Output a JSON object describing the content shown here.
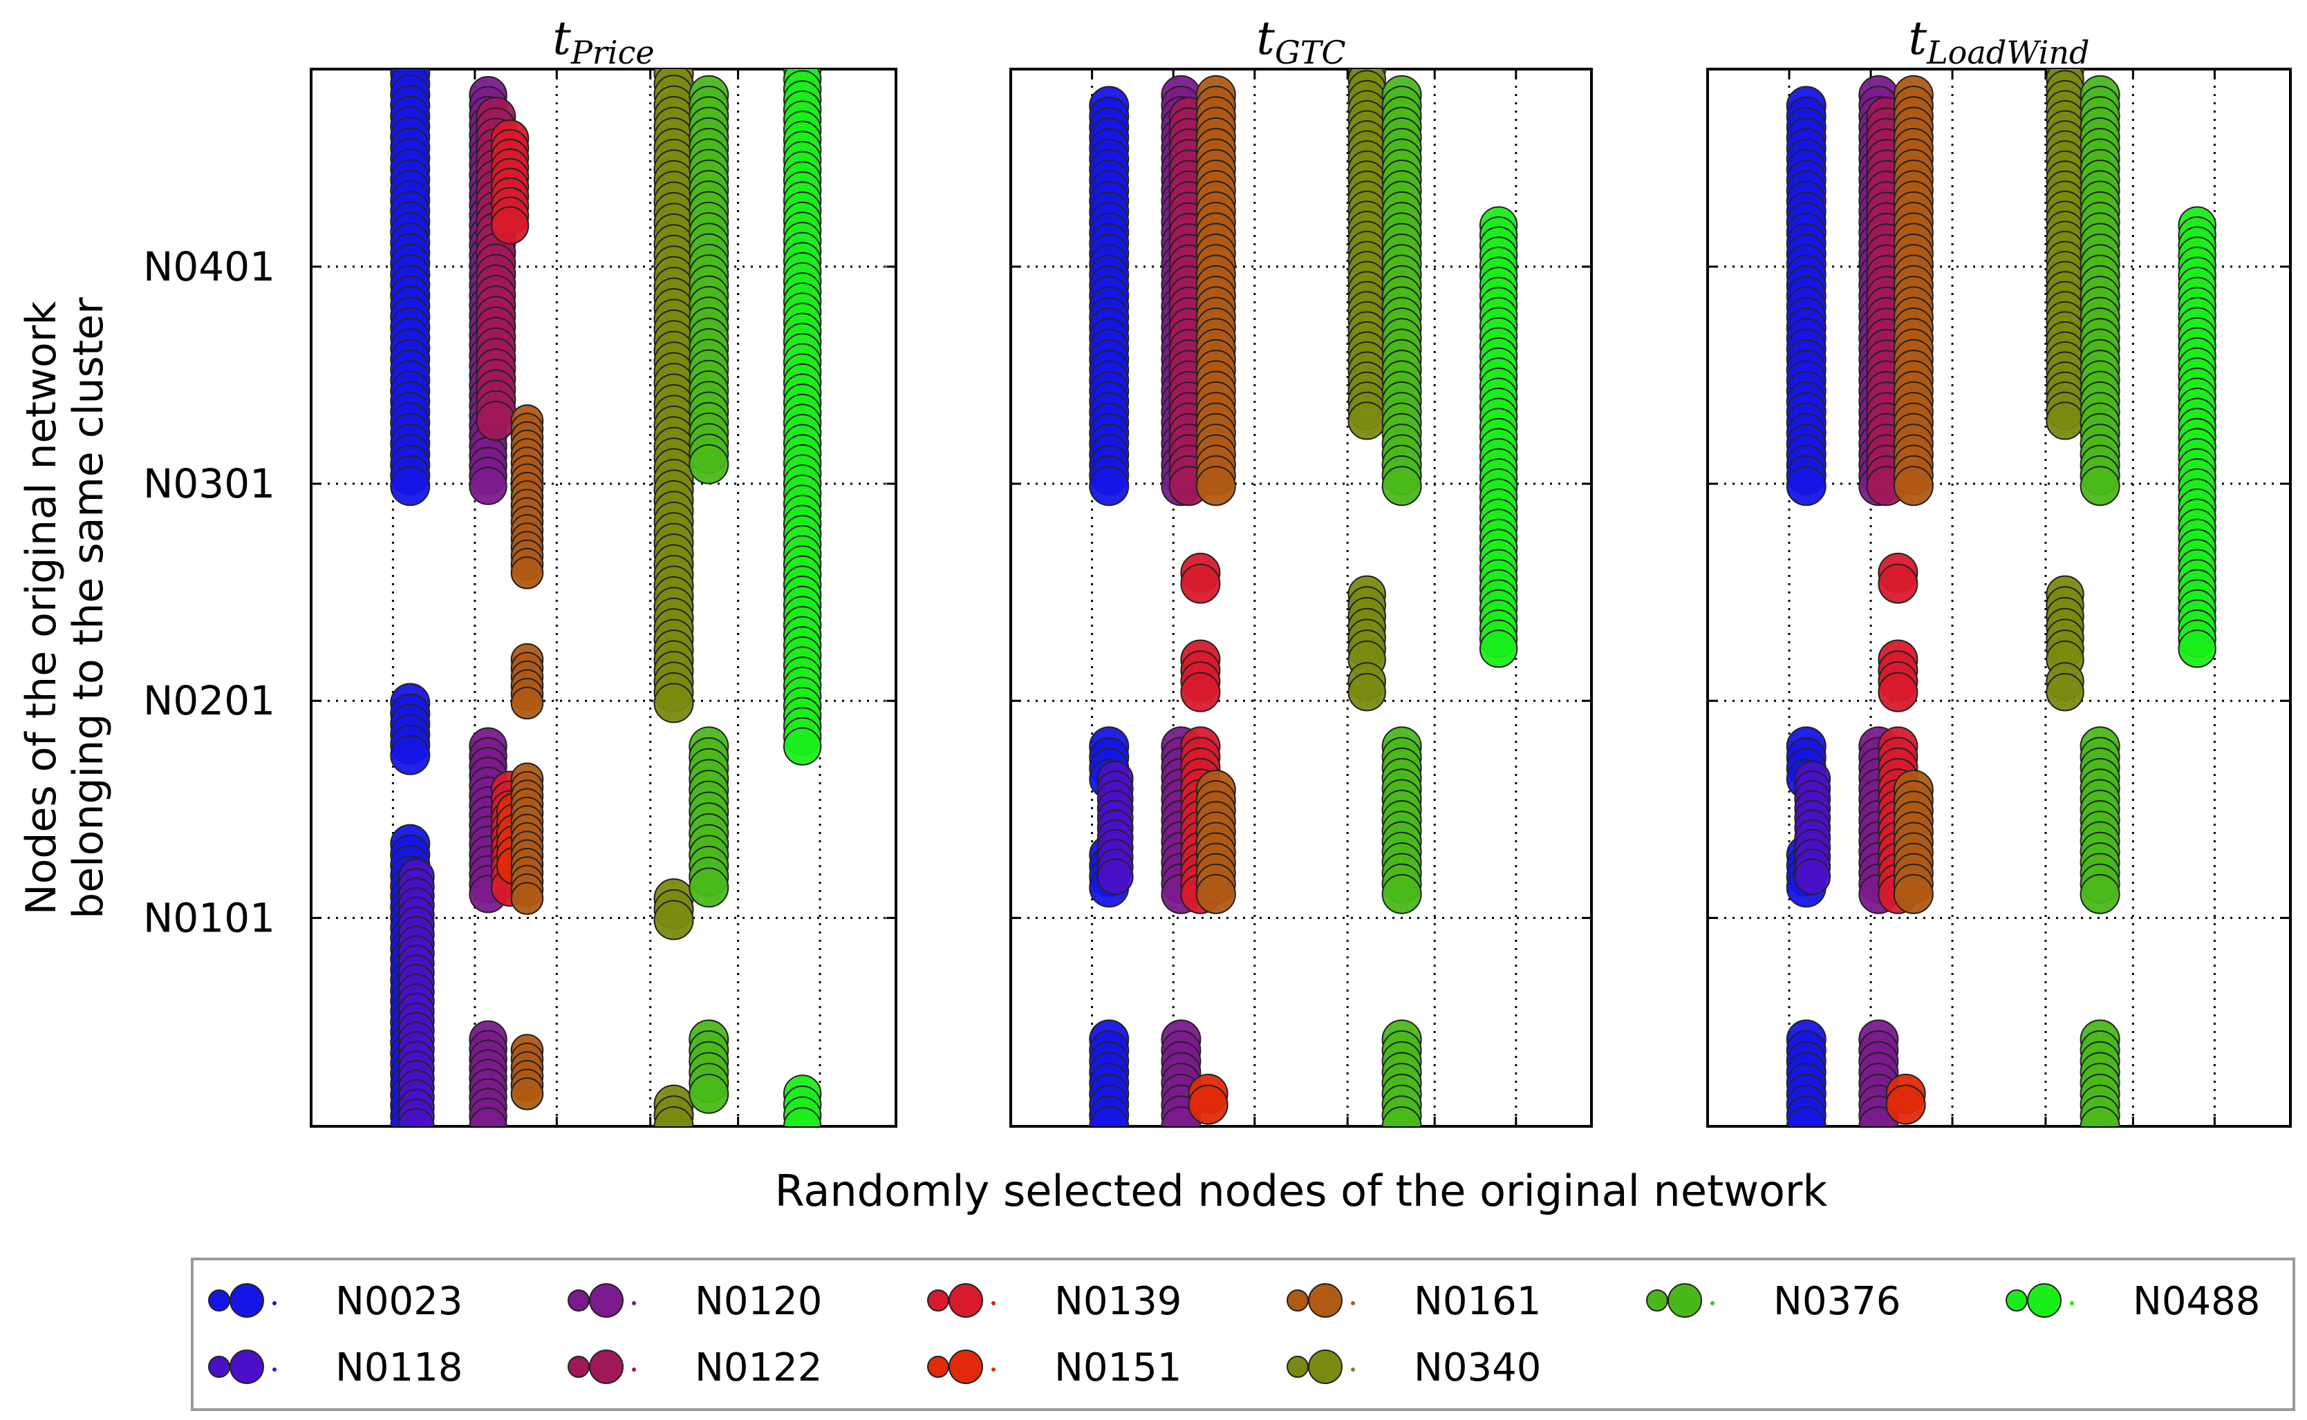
{
  "chart_data": {
    "type": "scatter",
    "xlabel": "Randomly selected nodes of the original network",
    "ylabel_lines": [
      "Nodes of the original network",
      "belonging to the same cluster"
    ],
    "yticks": [
      "N0101",
      "N0201",
      "N0301",
      "N0401"
    ],
    "ytick_values": [
      101,
      201,
      301,
      401
    ],
    "ylim": [
      5,
      492
    ],
    "xlim": [
      0,
      7.5
    ],
    "grid": true,
    "legend_placement": "bottom",
    "legend": [
      {
        "name": "N0023",
        "color": "#1515e6"
      },
      {
        "name": "N0120",
        "color": "#7a1a8c"
      },
      {
        "name": "N0139",
        "color": "#d81a2c"
      },
      {
        "name": "N0161",
        "color": "#b05a14"
      },
      {
        "name": "N0376",
        "color": "#4ab81a"
      },
      {
        "name": "N0488",
        "color": "#1aee1a"
      },
      {
        "name": "N0118",
        "color": "#4a10c8"
      },
      {
        "name": "N0122",
        "color": "#a0185a"
      },
      {
        "name": "N0151",
        "color": "#e02a0a"
      },
      {
        "name": "N0340",
        "color": "#7a8a10"
      }
    ],
    "panels": [
      {
        "title_base": "t",
        "title_sub": "Price",
        "series": [
          {
            "name": "N0023",
            "x": 1.27,
            "ranges": [
              [
                300,
                490
              ],
              [
                176,
                200
              ],
              [
                5,
                135
              ]
            ],
            "size": 1.0
          },
          {
            "name": "N0118",
            "x": 1.35,
            "ranges": [
              [
                5,
                120
              ]
            ],
            "size": 0.8
          },
          {
            "name": "N0120",
            "x": 2.27,
            "ranges": [
              [
                300,
                480
              ],
              [
                112,
                180
              ],
              [
                5,
                45
              ]
            ],
            "size": 0.9
          },
          {
            "name": "N0122",
            "x": 2.37,
            "ranges": [
              [
                330,
                470
              ]
            ],
            "size": 1.0
          },
          {
            "name": "N0139",
            "x": 2.55,
            "ranges": [
              [
                420,
                460
              ],
              [
                115,
                160
              ]
            ],
            "size": 0.9
          },
          {
            "name": "N0151",
            "x": 2.62,
            "ranges": [
              [
                125,
                150
              ]
            ],
            "size": 0.9
          },
          {
            "name": "N0161",
            "x": 2.77,
            "ranges": [
              [
                260,
                330
              ],
              [
                200,
                220
              ],
              [
                110,
                165
              ],
              [
                20,
                40
              ]
            ],
            "size": 0.6
          },
          {
            "name": "N0340",
            "x": 4.65,
            "ranges": [
              [
                200,
                490
              ],
              [
                100,
                110
              ],
              [
                5,
                15
              ]
            ],
            "size": 1.0
          },
          {
            "name": "N0376",
            "x": 5.1,
            "ranges": [
              [
                310,
                480
              ],
              [
                115,
                180
              ],
              [
                20,
                45
              ]
            ],
            "size": 1.0
          },
          {
            "name": "N0488",
            "x": 6.3,
            "ranges": [
              [
                180,
                492
              ],
              [
                5,
                20
              ]
            ],
            "size": 0.9
          }
        ]
      },
      {
        "title_base": "t",
        "title_sub": "GTC",
        "series": [
          {
            "name": "N0023",
            "x": 1.27,
            "ranges": [
              [
                300,
                475
              ],
              [
                165,
                180
              ],
              [
                115,
                130
              ],
              [
                5,
                45
              ]
            ],
            "size": 1.0
          },
          {
            "name": "N0118",
            "x": 1.35,
            "ranges": [
              [
                120,
                165
              ]
            ],
            "size": 0.8
          },
          {
            "name": "N0120",
            "x": 2.2,
            "ranges": [
              [
                300,
                480
              ],
              [
                112,
                180
              ],
              [
                5,
                45
              ]
            ],
            "size": 1.0
          },
          {
            "name": "N0122",
            "x": 2.3,
            "ranges": [
              [
                300,
                470
              ]
            ],
            "size": 1.0
          },
          {
            "name": "N0139",
            "x": 2.45,
            "ranges": [
              [
                255,
                260
              ],
              [
                205,
                220
              ],
              [
                112,
                180
              ]
            ],
            "size": 1.0
          },
          {
            "name": "N0151",
            "x": 2.55,
            "ranges": [
              [
                15,
                20
              ]
            ],
            "size": 1.0
          },
          {
            "name": "N0161",
            "x": 2.65,
            "ranges": [
              [
                300,
                480
              ],
              [
                112,
                160
              ]
            ],
            "size": 1.0
          },
          {
            "name": "N0340",
            "x": 4.6,
            "ranges": [
              [
                330,
                492
              ],
              [
                220,
                250
              ],
              [
                205,
                210
              ]
            ],
            "size": 0.9
          },
          {
            "name": "N0376",
            "x": 5.05,
            "ranges": [
              [
                300,
                480
              ],
              [
                112,
                180
              ],
              [
                5,
                45
              ]
            ],
            "size": 1.0
          },
          {
            "name": "N0488",
            "x": 6.3,
            "ranges": [
              [
                225,
                420
              ]
            ],
            "size": 0.9
          }
        ]
      },
      {
        "title_base": "t",
        "title_sub": "LoadWind",
        "series": [
          {
            "name": "N0023",
            "x": 1.27,
            "ranges": [
              [
                300,
                475
              ],
              [
                165,
                180
              ],
              [
                115,
                130
              ],
              [
                5,
                45
              ]
            ],
            "size": 1.0
          },
          {
            "name": "N0118",
            "x": 1.35,
            "ranges": [
              [
                120,
                165
              ]
            ],
            "size": 0.8
          },
          {
            "name": "N0120",
            "x": 2.2,
            "ranges": [
              [
                300,
                480
              ],
              [
                112,
                180
              ],
              [
                5,
                45
              ]
            ],
            "size": 1.0
          },
          {
            "name": "N0122",
            "x": 2.3,
            "ranges": [
              [
                300,
                470
              ]
            ],
            "size": 1.0
          },
          {
            "name": "N0139",
            "x": 2.45,
            "ranges": [
              [
                255,
                260
              ],
              [
                205,
                220
              ],
              [
                112,
                180
              ]
            ],
            "size": 1.0
          },
          {
            "name": "N0151",
            "x": 2.55,
            "ranges": [
              [
                15,
                20
              ]
            ],
            "size": 1.0
          },
          {
            "name": "N0161",
            "x": 2.65,
            "ranges": [
              [
                300,
                480
              ],
              [
                112,
                160
              ]
            ],
            "size": 1.0
          },
          {
            "name": "N0340",
            "x": 4.6,
            "ranges": [
              [
                330,
                492
              ],
              [
                220,
                250
              ],
              [
                205,
                210
              ]
            ],
            "size": 0.9
          },
          {
            "name": "N0376",
            "x": 5.05,
            "ranges": [
              [
                300,
                480
              ],
              [
                112,
                180
              ],
              [
                5,
                45
              ]
            ],
            "size": 1.0
          },
          {
            "name": "N0488",
            "x": 6.3,
            "ranges": [
              [
                225,
                420
              ]
            ],
            "size": 0.9
          }
        ]
      }
    ]
  }
}
